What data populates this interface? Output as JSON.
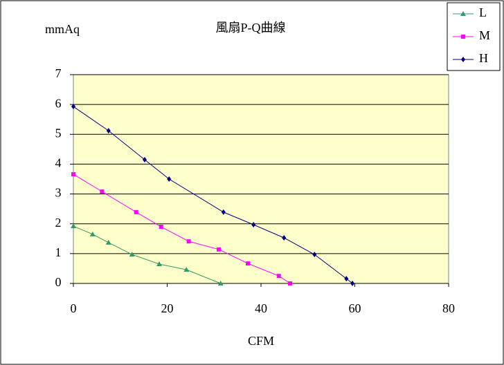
{
  "chart_data": {
    "type": "line",
    "title": "風扇P-Q曲線",
    "y_label": "mmAq",
    "x_label": "CFM",
    "xlim": [
      0,
      80
    ],
    "xticks": [
      0,
      20,
      40,
      60,
      80
    ],
    "ylim": [
      0,
      7
    ],
    "yticks": [
      0,
      1,
      2,
      3,
      4,
      5,
      6,
      7
    ],
    "grid": true,
    "legend": "top-right",
    "series": [
      {
        "name": "L",
        "color": "#339966",
        "marker": "triangle",
        "x": [
          0,
          4.1,
          7.5,
          12.5,
          18.3,
          24.1,
          31.4
        ],
        "values": [
          1.92,
          1.65,
          1.37,
          0.97,
          0.65,
          0.46,
          0
        ]
      },
      {
        "name": "M",
        "color": "#ff00ff",
        "marker": "square",
        "x": [
          0,
          6.1,
          13.4,
          18.7,
          24.6,
          31,
          37.2,
          43.8,
          46.2
        ],
        "values": [
          3.66,
          3.08,
          2.39,
          1.9,
          1.41,
          1.14,
          0.67,
          0.25,
          0
        ]
      },
      {
        "name": "H",
        "color": "#000080",
        "marker": "diamond",
        "x": [
          0,
          7.5,
          15.2,
          20.4,
          32,
          38.4,
          44.9,
          51.4,
          58.2,
          59.5
        ],
        "values": [
          5.93,
          5.12,
          4.15,
          3.5,
          2.39,
          1.97,
          1.53,
          0.97,
          0.16,
          0
        ]
      }
    ]
  }
}
